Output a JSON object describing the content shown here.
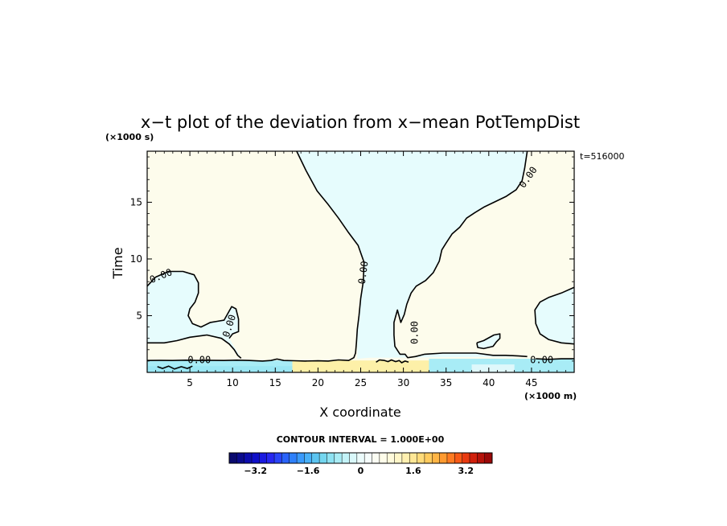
{
  "chart_data": {
    "type": "contour",
    "title": "x−t plot of the deviation from x−mean PotTempDist",
    "xlabel": "X coordinate",
    "ylabel": "Time",
    "x_units": "(×1000 m)",
    "y_units": "(×1000 s)",
    "time_label": "t=516000",
    "xlim": [
      0,
      50
    ],
    "ylim": [
      0,
      19.5
    ],
    "xticks": [
      5,
      10,
      15,
      20,
      25,
      30,
      35,
      40,
      45
    ],
    "yticks": [
      5,
      10,
      15
    ],
    "contour_interval_text": "CONTOUR INTERVAL = 1.000E+00",
    "contour_label": "0.00",
    "colorbar": {
      "min": -4.0,
      "max": 4.0,
      "tick_values": [
        -3.2,
        -1.6,
        0,
        1.6,
        3.2
      ],
      "tick_labels": [
        "−3.2",
        "−1.6",
        "0",
        "1.6",
        "3.2"
      ],
      "colors": [
        "#0a0a6e",
        "#0b0b8c",
        "#0d0dad",
        "#1010c8",
        "#1a1ae0",
        "#2727f0",
        "#2a45f8",
        "#2a63fa",
        "#2e80fb",
        "#3a9afb",
        "#48b0f7",
        "#5cc4f0",
        "#74d6ef",
        "#8ee2f2",
        "#a9ecf5",
        "#c3f3f8",
        "#d9f8fa",
        "#ebfbfb",
        "#f5fcfb",
        "#fbfdf3",
        "#fffdea",
        "#fffadb",
        "#fff6c8",
        "#fff0b0",
        "#ffe796",
        "#ffdb7a",
        "#ffcb5e",
        "#ffb545",
        "#ff9a30",
        "#ff7b22",
        "#f85a16",
        "#e83a10",
        "#d0200c",
        "#b5120a",
        "#9a0808"
      ]
    },
    "regions": [
      {
        "name": "positive",
        "value": 0.15,
        "color": "#fdfcec"
      },
      {
        "name": "negative",
        "value": -0.15,
        "color": "#e6fcfd"
      },
      {
        "name": "low-level negative",
        "value": -0.8,
        "color": "#a8ecf6"
      },
      {
        "name": "low-level positive",
        "value": 0.6,
        "color": "#fdf0a8"
      }
    ],
    "contour_lines": [
      {
        "level": 0,
        "points": [
          [
            17.5,
            19.5
          ],
          [
            18.6,
            17.8
          ],
          [
            19.9,
            16.0
          ],
          [
            21.2,
            14.8
          ],
          [
            22.4,
            13.6
          ],
          [
            23.5,
            12.4
          ],
          [
            24.7,
            11.2
          ],
          [
            25.4,
            9.7
          ],
          [
            25.3,
            8.0
          ],
          [
            25.0,
            6.5
          ],
          [
            24.8,
            5.0
          ],
          [
            24.6,
            3.8
          ],
          [
            24.5,
            2.6
          ],
          [
            24.4,
            1.7
          ],
          [
            24.2,
            1.3
          ],
          [
            23.6,
            1.05
          ],
          [
            22.4,
            1.1
          ],
          [
            21.2,
            1.0
          ],
          [
            20.0,
            1.02
          ],
          [
            18.5,
            1.0
          ],
          [
            17.2,
            1.03
          ],
          [
            16.0,
            1.05
          ],
          [
            15.2,
            1.18
          ],
          [
            14.5,
            1.05
          ],
          [
            13.5,
            1.0
          ],
          [
            12.0,
            1.05
          ],
          [
            10.5,
            1.08
          ],
          [
            9.0,
            1.05
          ],
          [
            7.5,
            1.06
          ],
          [
            6.0,
            1.05
          ],
          [
            4.5,
            1.08
          ],
          [
            3.0,
            1.05
          ],
          [
            1.5,
            1.06
          ],
          [
            0,
            1.05
          ]
        ]
      },
      {
        "level": 0,
        "points": [
          [
            0,
            2.6
          ],
          [
            2.0,
            2.6
          ],
          [
            3.5,
            2.8
          ],
          [
            5.0,
            3.1
          ],
          [
            7.0,
            3.3
          ],
          [
            8.7,
            3.0
          ],
          [
            9.6,
            2.5
          ],
          [
            10.2,
            2.0
          ],
          [
            10.6,
            1.5
          ],
          [
            11.0,
            1.25
          ]
        ]
      },
      {
        "level": 0,
        "points": [
          [
            0,
            7.6
          ],
          [
            1.0,
            8.4
          ],
          [
            2.5,
            8.9
          ],
          [
            4.2,
            8.9
          ],
          [
            5.5,
            8.6
          ],
          [
            6.0,
            7.9
          ],
          [
            6.0,
            7.0
          ],
          [
            5.6,
            6.2
          ],
          [
            5.0,
            5.6
          ],
          [
            4.8,
            5.0
          ],
          [
            5.3,
            4.3
          ],
          [
            6.3,
            4.0
          ],
          [
            7.4,
            4.4
          ],
          [
            8.2,
            4.5
          ],
          [
            9.0,
            4.6
          ],
          [
            9.9,
            5.8
          ],
          [
            10.4,
            5.6
          ],
          [
            10.7,
            4.7
          ],
          [
            10.7,
            3.6
          ],
          [
            10.0,
            3.4
          ],
          [
            9.6,
            3.0
          ]
        ]
      },
      {
        "level": 0,
        "points": [
          [
            44.5,
            19.5
          ],
          [
            44.2,
            18.0
          ],
          [
            43.9,
            16.9
          ],
          [
            43.2,
            16.1
          ],
          [
            42.0,
            15.5
          ],
          [
            40.6,
            15.0
          ],
          [
            39.5,
            14.6
          ],
          [
            38.4,
            14.1
          ],
          [
            37.4,
            13.6
          ],
          [
            36.6,
            12.8
          ],
          [
            35.7,
            12.2
          ],
          [
            35.0,
            11.4
          ],
          [
            34.5,
            10.8
          ],
          [
            34.2,
            9.8
          ],
          [
            33.5,
            8.8
          ],
          [
            32.6,
            8.1
          ],
          [
            31.5,
            7.6
          ],
          [
            30.9,
            7.0
          ],
          [
            30.4,
            6.0
          ],
          [
            30.1,
            5.1
          ],
          [
            29.7,
            4.4
          ],
          [
            29.3,
            5.5
          ],
          [
            28.9,
            4.4
          ],
          [
            28.9,
            3.3
          ],
          [
            29.0,
            2.3
          ],
          [
            29.6,
            1.6
          ],
          [
            30.2,
            1.6
          ],
          [
            30.5,
            1.3
          ],
          [
            31.4,
            1.4
          ],
          [
            32.5,
            1.6
          ],
          [
            34.6,
            1.7
          ],
          [
            36.5,
            1.7
          ],
          [
            38.5,
            1.7
          ],
          [
            40.5,
            1.5
          ],
          [
            42.0,
            1.5
          ],
          [
            43.5,
            1.45
          ],
          [
            44.5,
            1.4
          ]
        ]
      },
      {
        "level": 0,
        "points": [
          [
            45.5,
            1.2
          ],
          [
            47.0,
            1.15
          ],
          [
            48.5,
            1.2
          ],
          [
            50,
            1.2
          ]
        ]
      },
      {
        "level": 0,
        "points": [
          [
            50,
            7.5
          ],
          [
            48.5,
            7.0
          ],
          [
            47.0,
            6.6
          ],
          [
            46.0,
            6.2
          ],
          [
            45.4,
            5.5
          ],
          [
            45.5,
            4.3
          ],
          [
            46.0,
            3.4
          ],
          [
            47.0,
            2.9
          ],
          [
            48.5,
            2.6
          ],
          [
            50,
            2.5
          ]
        ]
      },
      {
        "level": 0,
        "points": [
          [
            38.6,
            2.6
          ],
          [
            39.4,
            2.8
          ],
          [
            40.6,
            3.3
          ],
          [
            41.3,
            3.4
          ],
          [
            41.3,
            3.0
          ],
          [
            40.9,
            2.7
          ],
          [
            40.5,
            2.3
          ],
          [
            39.4,
            2.1
          ],
          [
            38.7,
            2.2
          ],
          [
            38.6,
            2.6
          ]
        ]
      },
      {
        "level": 0,
        "points": [
          [
            26.8,
            0.9
          ],
          [
            27.2,
            1.1
          ],
          [
            27.8,
            1.05
          ],
          [
            28.2,
            0.95
          ],
          [
            28.6,
            1.1
          ],
          [
            29.1,
            0.95
          ],
          [
            29.5,
            1.05
          ],
          [
            29.8,
            0.85
          ],
          [
            30.2,
            1.0
          ],
          [
            30.6,
            0.9
          ]
        ]
      },
      {
        "level": 0,
        "points": [
          [
            1.2,
            0.5
          ],
          [
            1.8,
            0.35
          ],
          [
            2.5,
            0.55
          ],
          [
            3.2,
            0.3
          ],
          [
            4.0,
            0.5
          ],
          [
            4.7,
            0.35
          ],
          [
            5.3,
            0.55
          ]
        ]
      }
    ],
    "contour_labels": [
      {
        "text": "0.00",
        "x": 44.6,
        "y": 17.2,
        "angle": -55
      },
      {
        "text": "0.00",
        "x": 25.3,
        "y": 8.8,
        "angle": -82
      },
      {
        "text": "0.00",
        "x": 1.6,
        "y": 8.5,
        "angle": -22
      },
      {
        "text": "0.00",
        "x": 9.6,
        "y": 4.1,
        "angle": -72
      },
      {
        "text": "0.00",
        "x": 31.3,
        "y": 3.5,
        "angle": -90
      },
      {
        "text": "0.00",
        "x": 6.1,
        "y": 1.1,
        "angle": 0
      },
      {
        "text": "0.00",
        "x": 46.2,
        "y": 1.1,
        "angle": 0
      }
    ]
  }
}
